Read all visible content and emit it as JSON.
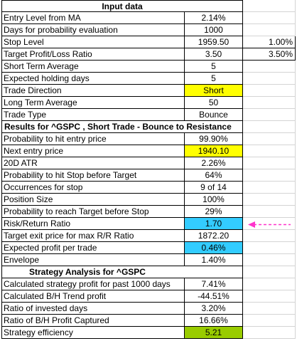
{
  "sections": {
    "input_title": "Input data",
    "results_title": "Results for ^GSPC , Short Trade - Bounce to Resistance",
    "strategy_title": "Strategy Analysis for ^GSPC"
  },
  "input_rows": [
    {
      "label": "Entry Level from MA",
      "value": "2.14%",
      "extra": ""
    },
    {
      "label": "Days for probability evaluation",
      "value": "1000",
      "extra": ""
    },
    {
      "label": "Stop Level",
      "value": "1959.50",
      "extra": "1.00%"
    },
    {
      "label": "Target Profit/Loss Ratio",
      "value": "3.50",
      "extra": "3.50%"
    },
    {
      "label": "Short Term Average",
      "value": "5",
      "extra": ""
    },
    {
      "label": "Expected holding days",
      "value": "5",
      "extra": ""
    },
    {
      "label": "Trade Direction",
      "value": "Short",
      "extra": ""
    },
    {
      "label": "Long Term Average",
      "value": "50",
      "extra": ""
    },
    {
      "label": "Trade Type",
      "value": "Bounce",
      "extra": ""
    }
  ],
  "result_rows": [
    {
      "label": "Probability to hit entry price",
      "value": "99.90%"
    },
    {
      "label": "Next entry price",
      "value": "1940.10"
    },
    {
      "label": "20D ATR",
      "value": "2.26%"
    },
    {
      "label": "Probability to hit Stop before Target",
      "value": "64%"
    },
    {
      "label": "Occurrences for stop",
      "value": "9 of 14"
    },
    {
      "label": "Position Size",
      "value": "100%"
    },
    {
      "label": "Probability to reach Target before Stop",
      "value": "29%"
    },
    {
      "label": "Risk/Return Ratio",
      "value": "1.70"
    },
    {
      "label": "Target exit price for max R/R Ratio",
      "value": "1872.20"
    },
    {
      "label": "Expected profit per trade",
      "value": "0.46%"
    },
    {
      "label": "Envelope",
      "value": "1.40%"
    }
  ],
  "strategy_rows": [
    {
      "label": "Calculated strategy profit for past 1000 days",
      "value": "7.41%"
    },
    {
      "label": "Calculated B/H Trend profit",
      "value": "-44.51%"
    },
    {
      "label": "Ratio of invested days",
      "value": "3.20%"
    },
    {
      "label": "Ratio of B/H Profit Captured",
      "value": "16.66%"
    },
    {
      "label": "Strategy efficiency",
      "value": "5.21"
    }
  ],
  "colors": {
    "highlight_yellow": "#ffff00",
    "highlight_blue": "#33ccff",
    "highlight_green": "#99cc00",
    "pointer_arrow": "#ff33cc"
  },
  "icons": {
    "pointer": "dashed-arrow-left-icon"
  }
}
